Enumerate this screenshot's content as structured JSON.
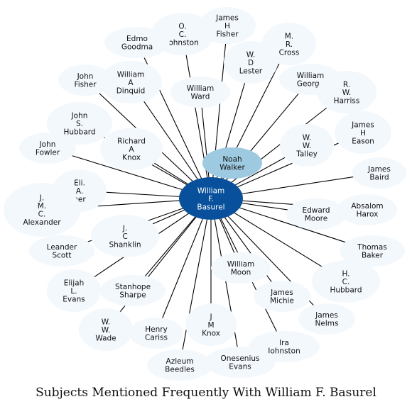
{
  "caption": "Subjects Mentioned Frequently With William F. Basurel",
  "colors": {
    "center_fill": "#08509b",
    "highlight_fill": "#9ecae1",
    "node_fill": "#f3f8fd",
    "edge": "#000000",
    "text": "#111111",
    "center_text": "#ffffff"
  },
  "center": {
    "id": "basurel",
    "lines": [
      "William",
      "F.",
      "Basurel"
    ]
  },
  "nodes": [
    {
      "id": "ivan",
      "lines": [
        "James",
        "H",
        "Fisher"
      ]
    },
    {
      "id": "ojohnston",
      "lines": [
        "O.",
        "C.",
        "Johnston"
      ]
    },
    {
      "id": "goodman",
      "lines": [
        "Edmo",
        "Goodma"
      ]
    },
    {
      "id": "cross",
      "lines": [
        "M.",
        "R.",
        "Cross"
      ]
    },
    {
      "id": "lester",
      "lines": [
        "W.",
        "D",
        "Lester"
      ]
    },
    {
      "id": "jfisher",
      "lines": [
        "John",
        "Fisher"
      ]
    },
    {
      "id": "dinquid",
      "lines": [
        "William",
        "A",
        "Dinquid"
      ]
    },
    {
      "id": "ward",
      "lines": [
        "William",
        "Ward"
      ]
    },
    {
      "id": "george",
      "lines": [
        "William",
        "George"
      ]
    },
    {
      "id": "harriss",
      "lines": [
        "R.",
        "W.",
        "Harriss"
      ]
    },
    {
      "id": "hubbardj",
      "lines": [
        "John",
        "S.",
        "Hubbard"
      ]
    },
    {
      "id": "eason",
      "lines": [
        "James",
        "H",
        "Eason"
      ]
    },
    {
      "id": "knoxr",
      "lines": [
        "Richard",
        "A",
        "Knox"
      ]
    },
    {
      "id": "talley",
      "lines": [
        "W.",
        "W.",
        "Talley"
      ]
    },
    {
      "id": "fowler",
      "lines": [
        "John",
        "Fowler"
      ]
    },
    {
      "id": "walker",
      "lines": [
        "Noah",
        "Walker"
      ],
      "highlight": true
    },
    {
      "id": "baird",
      "lines": [
        "James",
        "Baird"
      ]
    },
    {
      "id": "eli",
      "lines": [
        "Eli.",
        "A.",
        "her"
      ]
    },
    {
      "id": "alexander",
      "lines": [
        "J.",
        "M.",
        "C.",
        "Alexander"
      ]
    },
    {
      "id": "moore",
      "lines": [
        "Edward",
        "Moore"
      ]
    },
    {
      "id": "harox",
      "lines": [
        "Absalom",
        "Harox"
      ]
    },
    {
      "id": "shanklin",
      "lines": [
        "J.",
        "C",
        "Shanklin"
      ]
    },
    {
      "id": "scott",
      "lines": [
        "Leander",
        "Scott"
      ]
    },
    {
      "id": "baker",
      "lines": [
        "Thomas",
        "Baker"
      ]
    },
    {
      "id": "moon",
      "lines": [
        "William",
        "Moon"
      ]
    },
    {
      "id": "hhubbard",
      "lines": [
        "H.",
        "C.",
        "Hubbard"
      ]
    },
    {
      "id": "evans",
      "lines": [
        "Elijah",
        "L.",
        "Evans"
      ]
    },
    {
      "id": "sharpe",
      "lines": [
        "Stanhope",
        "Sharpe"
      ]
    },
    {
      "id": "michie",
      "lines": [
        "James",
        "Michie"
      ]
    },
    {
      "id": "nelms",
      "lines": [
        "James",
        "Nelms"
      ]
    },
    {
      "id": "wade",
      "lines": [
        "W.",
        "W.",
        "Wade"
      ]
    },
    {
      "id": "jmknox",
      "lines": [
        "J",
        "M",
        "Knox"
      ]
    },
    {
      "id": "cariss",
      "lines": [
        "Henry",
        "Cariss"
      ]
    },
    {
      "id": "ijohnston",
      "lines": [
        "Ira",
        "Johnston"
      ]
    },
    {
      "id": "beedles",
      "lines": [
        "Azleum",
        "Beedles"
      ]
    },
    {
      "id": "oevans",
      "lines": [
        "Onesenius",
        "Evans"
      ]
    }
  ]
}
